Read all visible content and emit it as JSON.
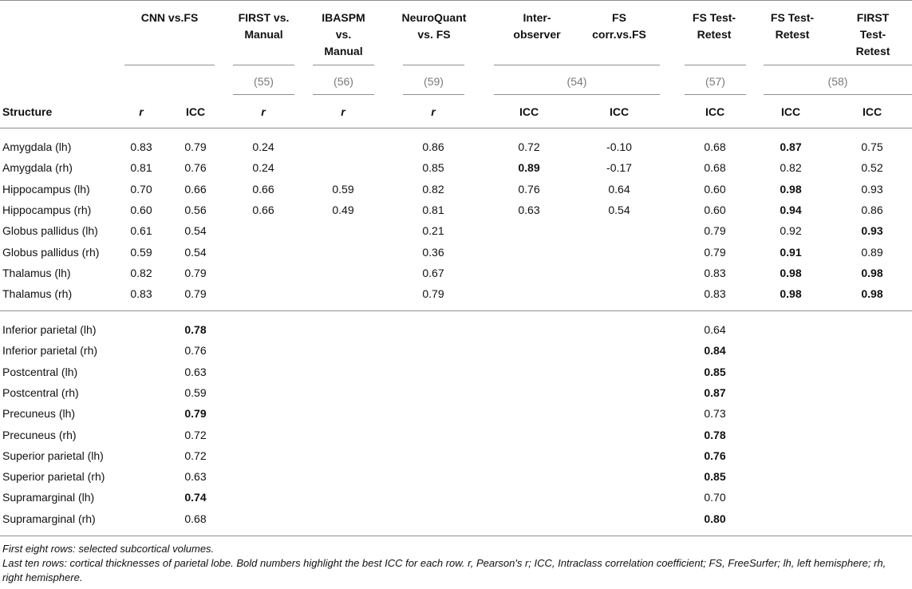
{
  "header": {
    "groups": [
      {
        "label": "CNN vs.FS"
      },
      {
        "label": "FIRST vs. Manual"
      },
      {
        "label": "IBASPM vs. Manual"
      },
      {
        "label": "NeuroQuant vs. FS"
      },
      {
        "label": "Inter-observer"
      },
      {
        "label": "FS corr.vs.FS"
      },
      {
        "label": "FS Test-Retest"
      },
      {
        "label": "FS Test-Retest"
      },
      {
        "label": "FIRST Test-Retest"
      }
    ],
    "refs": [
      "(55)",
      "(56)",
      "(59)",
      "(54)",
      "(57)",
      "(58)"
    ],
    "structure_label": "Structure",
    "sub": [
      "r",
      "ICC",
      "r",
      "r",
      "r",
      "ICC",
      "ICC",
      "ICC",
      "ICC",
      "ICC"
    ]
  },
  "subcortical_rows": [
    {
      "name": "Amygdala (lh)",
      "cells": [
        "0.83",
        "0.79",
        "0.24",
        "",
        "0.86",
        "0.72",
        "-0.10",
        "0.68",
        "0.87",
        "0.75"
      ],
      "bold": [
        8
      ]
    },
    {
      "name": "Amygdala (rh)",
      "cells": [
        "0.81",
        "0.76",
        "0.24",
        "",
        "0.85",
        "0.89",
        "-0.17",
        "0.68",
        "0.82",
        "0.52"
      ],
      "bold": [
        5
      ]
    },
    {
      "name": "Hippocampus (lh)",
      "cells": [
        "0.70",
        "0.66",
        "0.66",
        "0.59",
        "0.82",
        "0.76",
        "0.64",
        "0.60",
        "0.98",
        "0.93"
      ],
      "bold": [
        8
      ]
    },
    {
      "name": "Hippocampus (rh)",
      "cells": [
        "0.60",
        "0.56",
        "0.66",
        "0.49",
        "0.81",
        "0.63",
        "0.54",
        "0.60",
        "0.94",
        "0.86"
      ],
      "bold": [
        8
      ]
    },
    {
      "name": "Globus pallidus (lh)",
      "cells": [
        "0.61",
        "0.54",
        "",
        "",
        "0.21",
        "",
        "",
        "0.79",
        "0.92",
        "0.93"
      ],
      "bold": [
        9
      ]
    },
    {
      "name": "Globus pallidus (rh)",
      "cells": [
        "0.59",
        "0.54",
        "",
        "",
        "0.36",
        "",
        "",
        "0.79",
        "0.91",
        "0.89"
      ],
      "bold": [
        8
      ]
    },
    {
      "name": "Thalamus (lh)",
      "cells": [
        "0.82",
        "0.79",
        "",
        "",
        "0.67",
        "",
        "",
        "0.83",
        "0.98",
        "0.98"
      ],
      "bold": [
        8,
        9
      ]
    },
    {
      "name": "Thalamus (rh)",
      "cells": [
        "0.83",
        "0.79",
        "",
        "",
        "0.79",
        "",
        "",
        "0.83",
        "0.98",
        "0.98"
      ],
      "bold": [
        8,
        9
      ]
    }
  ],
  "cortical_rows": [
    {
      "name": "Inferior parietal (lh)",
      "cnn_icc": "0.78",
      "cnn_bold": true,
      "fs_icc": "0.64",
      "fs_bold": false
    },
    {
      "name": "Inferior parietal (rh)",
      "cnn_icc": "0.76",
      "cnn_bold": false,
      "fs_icc": "0.84",
      "fs_bold": true
    },
    {
      "name": "Postcentral (lh)",
      "cnn_icc": "0.63",
      "cnn_bold": false,
      "fs_icc": "0.85",
      "fs_bold": true
    },
    {
      "name": "Postcentral (rh)",
      "cnn_icc": "0.59",
      "cnn_bold": false,
      "fs_icc": "0.87",
      "fs_bold": true
    },
    {
      "name": "Precuneus (lh)",
      "cnn_icc": "0.79",
      "cnn_bold": true,
      "fs_icc": "0.73",
      "fs_bold": false
    },
    {
      "name": "Precuneus (rh)",
      "cnn_icc": "0.72",
      "cnn_bold": false,
      "fs_icc": "0.78",
      "fs_bold": true
    },
    {
      "name": "Superior parietal (lh)",
      "cnn_icc": "0.72",
      "cnn_bold": false,
      "fs_icc": "0.76",
      "fs_bold": true
    },
    {
      "name": "Superior parietal (rh)",
      "cnn_icc": "0.63",
      "cnn_bold": false,
      "fs_icc": "0.85",
      "fs_bold": true
    },
    {
      "name": "Supramarginal (lh)",
      "cnn_icc": "0.74",
      "cnn_bold": true,
      "fs_icc": "0.70",
      "fs_bold": false
    },
    {
      "name": "Supramarginal (rh)",
      "cnn_icc": "0.68",
      "cnn_bold": false,
      "fs_icc": "0.80",
      "fs_bold": true
    }
  ],
  "footnotes": [
    "First eight rows: selected subcortical volumes.",
    "Last ten rows: cortical thicknesses of parietal lobe. Bold numbers highlight the best ICC for each row. r, Pearson's r; ICC, Intraclass correlation coefficient; FS, FreeSurfer; lh, left hemisphere; rh, right hemisphere."
  ]
}
